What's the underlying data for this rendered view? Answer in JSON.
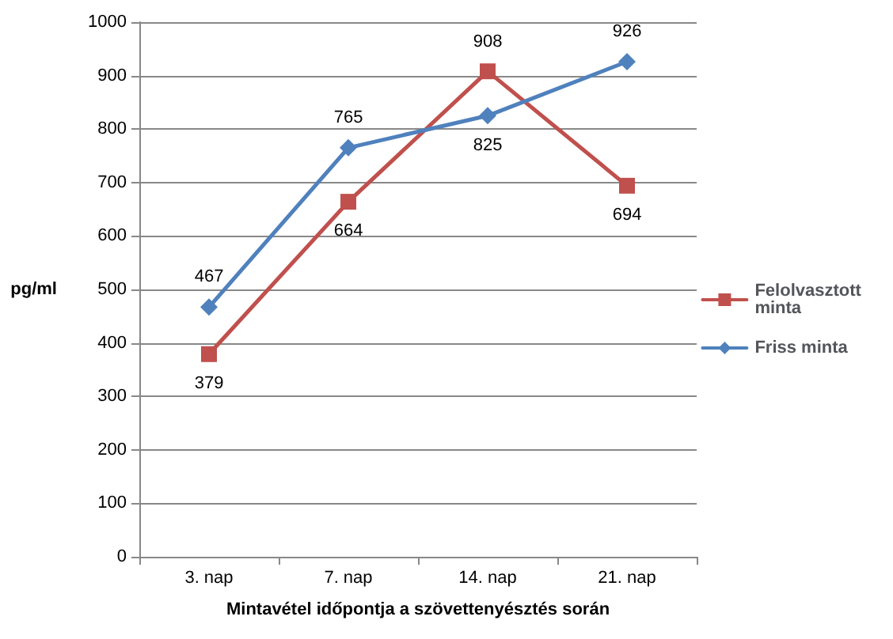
{
  "chart_data": {
    "type": "line",
    "xlabel": "Mintavétel időpontja a szövettenyésztés során",
    "ylabel": "pg/ml",
    "categories": [
      "3. nap",
      "7. nap",
      "14. nap",
      "21. nap"
    ],
    "series": [
      {
        "name": "Felolvasztott minta",
        "color": "#c0504d",
        "marker": "square",
        "values": [
          379,
          664,
          908,
          694
        ]
      },
      {
        "name": "Friss minta",
        "color": "#4f81bd",
        "marker": "diamond",
        "values": [
          467,
          765,
          825,
          926
        ]
      }
    ],
    "ylim": [
      0,
      1000
    ],
    "yticks": [
      0,
      100,
      200,
      300,
      400,
      500,
      600,
      700,
      800,
      900,
      1000
    ],
    "grid": "y",
    "legend": "right",
    "data_labels": true,
    "line_style": "solid"
  }
}
